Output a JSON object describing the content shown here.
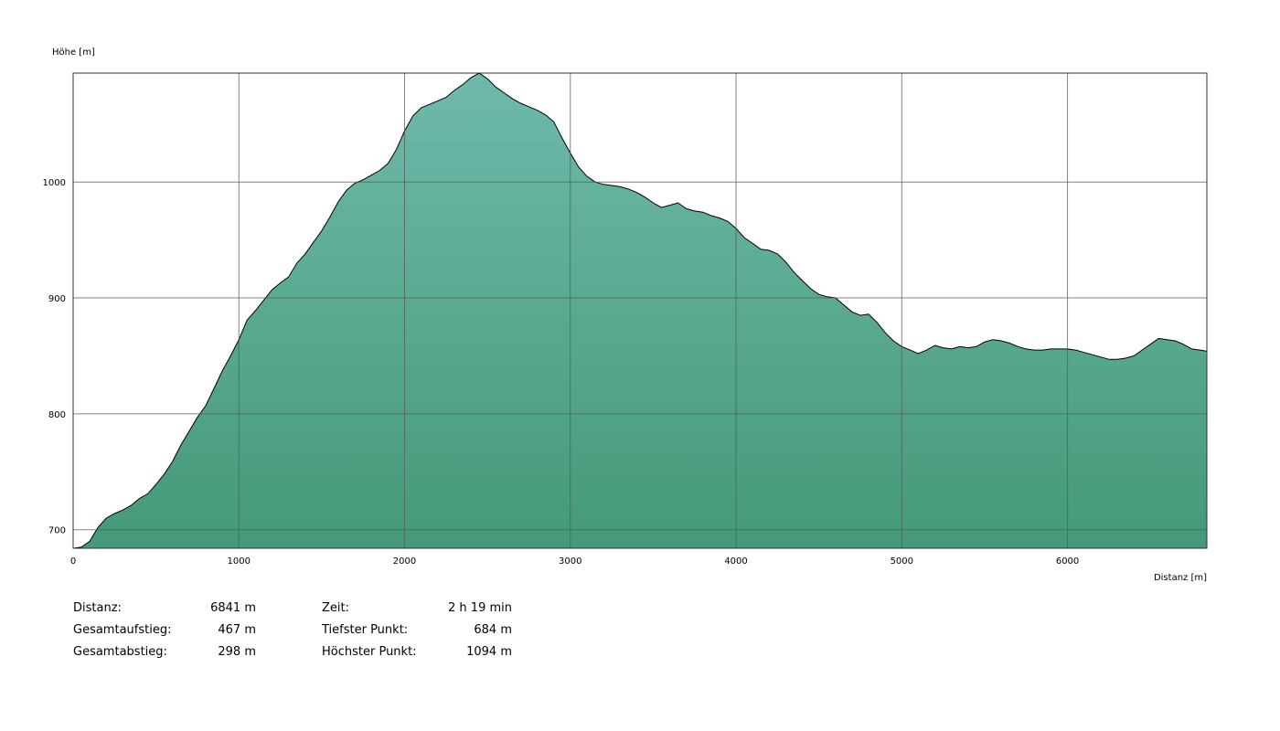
{
  "chart_data": {
    "type": "area",
    "ylabel": "Höhe [m]",
    "xlabel": "Distanz [m]",
    "xlim": [
      0,
      6841
    ],
    "ylim": [
      684,
      1094
    ],
    "x_ticks": [
      0,
      1000,
      2000,
      3000,
      4000,
      5000,
      6000
    ],
    "y_ticks": [
      700,
      800,
      900,
      1000
    ],
    "grid": true,
    "fill_color": "#5aab91",
    "line_color": "#000000",
    "points": [
      [
        0,
        684
      ],
      [
        50,
        685
      ],
      [
        100,
        690
      ],
      [
        150,
        702
      ],
      [
        200,
        710
      ],
      [
        250,
        714
      ],
      [
        300,
        717
      ],
      [
        350,
        721
      ],
      [
        400,
        727
      ],
      [
        450,
        731
      ],
      [
        500,
        739
      ],
      [
        550,
        748
      ],
      [
        600,
        759
      ],
      [
        650,
        773
      ],
      [
        700,
        785
      ],
      [
        750,
        797
      ],
      [
        800,
        807
      ],
      [
        850,
        822
      ],
      [
        900,
        837
      ],
      [
        950,
        850
      ],
      [
        1000,
        864
      ],
      [
        1050,
        881
      ],
      [
        1100,
        889
      ],
      [
        1150,
        898
      ],
      [
        1200,
        907
      ],
      [
        1250,
        913
      ],
      [
        1300,
        918
      ],
      [
        1350,
        930
      ],
      [
        1400,
        938
      ],
      [
        1450,
        948
      ],
      [
        1500,
        958
      ],
      [
        1550,
        970
      ],
      [
        1600,
        983
      ],
      [
        1650,
        993
      ],
      [
        1700,
        999
      ],
      [
        1750,
        1002
      ],
      [
        1800,
        1006
      ],
      [
        1850,
        1010
      ],
      [
        1900,
        1016
      ],
      [
        1950,
        1028
      ],
      [
        2000,
        1044
      ],
      [
        2050,
        1057
      ],
      [
        2100,
        1064
      ],
      [
        2150,
        1067
      ],
      [
        2200,
        1070
      ],
      [
        2250,
        1073
      ],
      [
        2300,
        1079
      ],
      [
        2350,
        1084
      ],
      [
        2400,
        1090
      ],
      [
        2450,
        1094
      ],
      [
        2500,
        1089
      ],
      [
        2550,
        1082
      ],
      [
        2600,
        1077
      ],
      [
        2650,
        1072
      ],
      [
        2700,
        1068
      ],
      [
        2750,
        1065
      ],
      [
        2800,
        1062
      ],
      [
        2850,
        1058
      ],
      [
        2900,
        1052
      ],
      [
        2950,
        1038
      ],
      [
        3000,
        1025
      ],
      [
        3050,
        1013
      ],
      [
        3100,
        1005
      ],
      [
        3150,
        1000
      ],
      [
        3200,
        998
      ],
      [
        3250,
        997
      ],
      [
        3300,
        996
      ],
      [
        3350,
        994
      ],
      [
        3400,
        991
      ],
      [
        3450,
        987
      ],
      [
        3500,
        982
      ],
      [
        3550,
        978
      ],
      [
        3600,
        980
      ],
      [
        3650,
        982
      ],
      [
        3700,
        977
      ],
      [
        3750,
        975
      ],
      [
        3800,
        974
      ],
      [
        3850,
        971
      ],
      [
        3900,
        969
      ],
      [
        3950,
        966
      ],
      [
        4000,
        960
      ],
      [
        4050,
        952
      ],
      [
        4100,
        947
      ],
      [
        4150,
        942
      ],
      [
        4200,
        941
      ],
      [
        4250,
        938
      ],
      [
        4300,
        931
      ],
      [
        4350,
        922
      ],
      [
        4400,
        915
      ],
      [
        4450,
        908
      ],
      [
        4500,
        903
      ],
      [
        4550,
        901
      ],
      [
        4600,
        900
      ],
      [
        4650,
        894
      ],
      [
        4700,
        888
      ],
      [
        4750,
        885
      ],
      [
        4800,
        886
      ],
      [
        4850,
        879
      ],
      [
        4900,
        870
      ],
      [
        4950,
        863
      ],
      [
        5000,
        858
      ],
      [
        5050,
        855
      ],
      [
        5100,
        852
      ],
      [
        5150,
        855
      ],
      [
        5200,
        859
      ],
      [
        5250,
        857
      ],
      [
        5300,
        856
      ],
      [
        5350,
        858
      ],
      [
        5400,
        857
      ],
      [
        5450,
        858
      ],
      [
        5500,
        862
      ],
      [
        5550,
        864
      ],
      [
        5600,
        863
      ],
      [
        5650,
        861
      ],
      [
        5700,
        858
      ],
      [
        5750,
        856
      ],
      [
        5800,
        855
      ],
      [
        5850,
        855
      ],
      [
        5900,
        856
      ],
      [
        5950,
        856
      ],
      [
        6000,
        856
      ],
      [
        6050,
        855
      ],
      [
        6100,
        853
      ],
      [
        6150,
        851
      ],
      [
        6200,
        849
      ],
      [
        6250,
        847
      ],
      [
        6300,
        847
      ],
      [
        6350,
        848
      ],
      [
        6400,
        850
      ],
      [
        6450,
        855
      ],
      [
        6500,
        860
      ],
      [
        6550,
        865
      ],
      [
        6600,
        864
      ],
      [
        6650,
        863
      ],
      [
        6700,
        860
      ],
      [
        6750,
        856
      ],
      [
        6800,
        855
      ],
      [
        6841,
        854
      ]
    ]
  },
  "stats": {
    "distance_label": "Distanz:",
    "distance_value": "6841 m",
    "ascent_label": "Gesamtaufstieg:",
    "ascent_value": "467 m",
    "descent_label": "Gesamtabstieg:",
    "descent_value": "298 m",
    "time_label": "Zeit:",
    "time_value": "2 h 19 min",
    "lowest_label": "Tiefster Punkt:",
    "lowest_value": "684 m",
    "highest_label": "Höchster Punkt:",
    "highest_value": "1094 m"
  }
}
